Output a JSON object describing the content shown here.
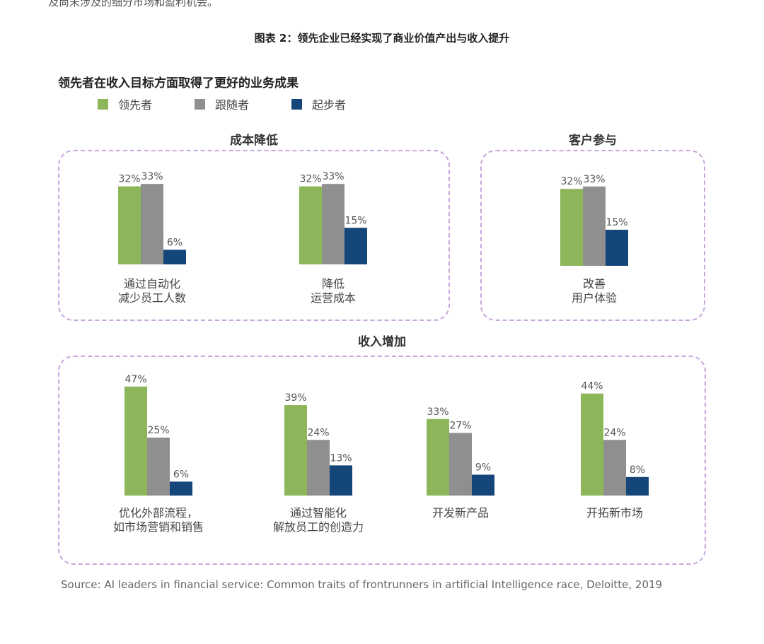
{
  "page": {
    "top_text": "及尚未涉及的细分市场和盈利机会。",
    "figure_title": "图表 2：领先企业已经实现了商业价值产出与收入提升",
    "subtitle": "领先者在收入目标方面取得了更好的业务成果",
    "source": "Source:  AI leaders in financial service: Common traits of frontrunners in artificial Intelligence race, Deloitte, 2019"
  },
  "legend": [
    {
      "label": "领先者",
      "color": "#8db55a"
    },
    {
      "label": "跟随者",
      "color": "#8f8f8f"
    },
    {
      "label": "起步者",
      "color": "#15467a"
    }
  ],
  "groups": {
    "cost": "成本降低",
    "customer": "客户参与",
    "revenue": "收入增加"
  },
  "chart_data": [
    {
      "type": "bar",
      "title": "成本降低",
      "categories": [
        [
          "通过自动化",
          "减少员工人数"
        ],
        [
          "降低",
          "运营成本"
        ]
      ],
      "series": [
        {
          "name": "领先者",
          "values": [
            32,
            32
          ]
        },
        {
          "name": "跟随者",
          "values": [
            33,
            33
          ]
        },
        {
          "name": "起步者",
          "values": [
            6,
            15
          ]
        }
      ],
      "unit": "%"
    },
    {
      "type": "bar",
      "title": "客户参与",
      "categories": [
        [
          "改善",
          "用户体验"
        ]
      ],
      "series": [
        {
          "name": "领先者",
          "values": [
            32
          ]
        },
        {
          "name": "跟随者",
          "values": [
            33
          ]
        },
        {
          "name": "起步者",
          "values": [
            15
          ]
        }
      ],
      "unit": "%"
    },
    {
      "type": "bar",
      "title": "收入增加",
      "categories": [
        [
          "优化外部流程，",
          "如市场营销和销售"
        ],
        [
          "通过智能化",
          "解放员工的创造力"
        ],
        [
          "开发新产品"
        ],
        [
          "开拓新市场"
        ]
      ],
      "series": [
        {
          "name": "领先者",
          "values": [
            47,
            39,
            33,
            44
          ]
        },
        {
          "name": "跟随者",
          "values": [
            25,
            24,
            27,
            24
          ]
        },
        {
          "name": "起步者",
          "values": [
            6,
            13,
            9,
            8
          ]
        }
      ],
      "unit": "%"
    }
  ]
}
